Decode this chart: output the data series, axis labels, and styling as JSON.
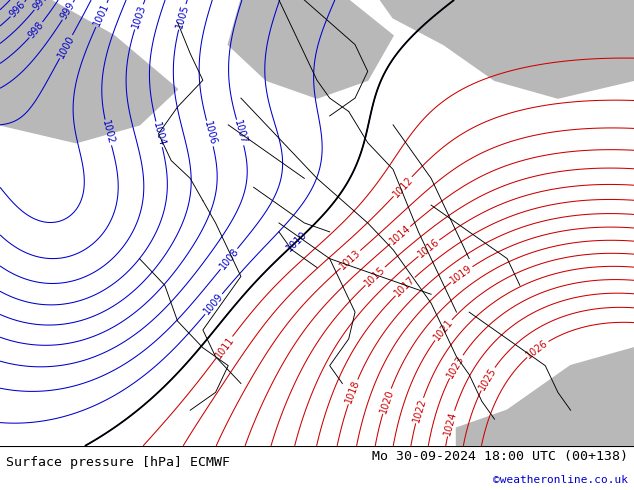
{
  "title_left": "Surface pressure [hPa] ECMWF",
  "title_right": "Mo 30-09-2024 18:00 UTC (00+138)",
  "title_right_sub": "©weatheronline.co.uk",
  "title_right_color": "#0000cc",
  "bg_color_land": "#99cc66",
  "bg_color_sea": "#b8b8b8",
  "contour_color_low": "#0000cc",
  "contour_color_high": "#cc0000",
  "contour_color_transition": "#000000",
  "transition_value": 1010,
  "pressure_min": 984,
  "pressure_max": 1028,
  "figsize": [
    6.34,
    4.9
  ],
  "dpi": 100,
  "title_fontsize": 9.5,
  "label_fontsize": 7.0
}
